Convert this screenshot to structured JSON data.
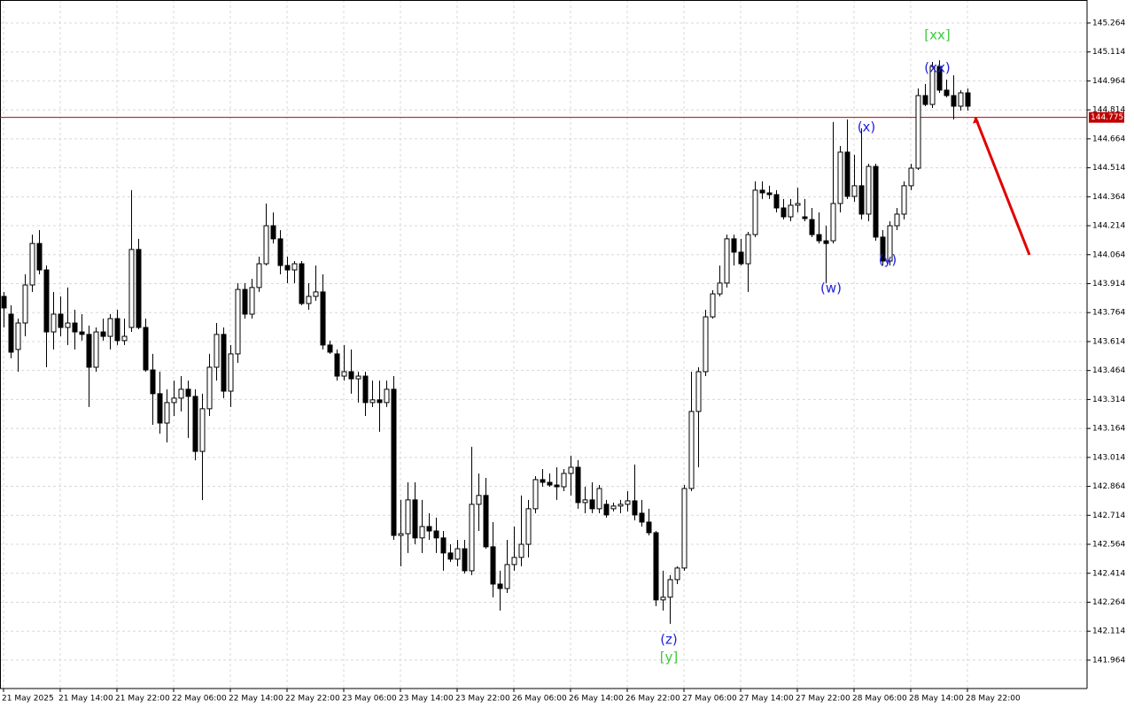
{
  "chart_data": {
    "type": "candlestick",
    "ylim": [
      141.817,
      145.383
    ],
    "yticks": [
      145.264,
      145.114,
      144.964,
      144.814,
      144.664,
      144.514,
      144.364,
      144.214,
      144.064,
      143.914,
      143.764,
      143.614,
      143.464,
      143.314,
      143.164,
      143.014,
      142.864,
      142.714,
      142.564,
      142.414,
      142.264,
      142.114,
      141.964
    ],
    "grid": true,
    "up_color": "#ffffff",
    "down_color": "#000000",
    "current_price": {
      "value": 144.775,
      "color": "#c00000"
    },
    "forecast": {
      "values": [
        144.775,
        144.063
      ],
      "color": "#e00000"
    },
    "annotations": [
      {
        "text": "[xx]",
        "color": "#3cc83c"
      },
      {
        "text": "(xx)",
        "color": "#2222dd"
      },
      {
        "text": "(x)",
        "color": "#2222dd"
      },
      {
        "text": "(w)",
        "color": "#2222dd"
      },
      {
        "text": "(y)",
        "color": "#2222dd"
      },
      {
        "text": "(z)",
        "color": "#2222dd"
      },
      {
        "text": "[y]",
        "color": "#3cc83c"
      }
    ],
    "x": [
      "21 May 2025",
      null,
      null,
      null,
      null,
      null,
      null,
      null,
      "21 May 14:00",
      null,
      null,
      null,
      null,
      null,
      null,
      null,
      "21 May 22:00",
      null,
      null,
      null,
      null,
      null,
      null,
      null,
      "22 May 06:00",
      null,
      null,
      null,
      null,
      null,
      null,
      null,
      "22 May 14:00",
      null,
      null,
      null,
      null,
      null,
      null,
      null,
      "22 May 22:00",
      null,
      null,
      null,
      null,
      null,
      null,
      null,
      "23 May 06:00",
      null,
      null,
      null,
      null,
      null,
      null,
      null,
      "23 May 14:00",
      null,
      null,
      null,
      null,
      null,
      null,
      null,
      "23 May 22:00",
      null,
      null,
      null,
      null,
      null,
      null,
      null,
      "26 May 06:00",
      null,
      null,
      null,
      null,
      null,
      null,
      null,
      "26 May 14:00",
      null,
      null,
      null,
      null,
      null,
      null,
      null,
      "26 May 22:00",
      null,
      null,
      null,
      null,
      null,
      null,
      null,
      "27 May 06:00",
      null,
      null,
      null,
      null,
      null,
      null,
      null,
      "27 May 14:00",
      null,
      null,
      null,
      null,
      null,
      null,
      null,
      "27 May 22:00",
      null,
      null,
      null,
      null,
      null,
      null,
      null,
      "28 May 06:00",
      null,
      null,
      null,
      null,
      null,
      null,
      null,
      "28 May 14:00",
      null,
      null,
      null,
      null,
      null,
      null,
      null,
      "28 May 22:00"
    ],
    "candles": [
      [
        143.848,
        143.871,
        143.687,
        143.788
      ],
      [
        143.756,
        143.802,
        143.527,
        143.559
      ],
      [
        143.573,
        143.733,
        143.458,
        143.71
      ],
      [
        143.71,
        143.962,
        143.641,
        143.907
      ],
      [
        143.907,
        144.168,
        143.871,
        144.122
      ],
      [
        144.122,
        144.191,
        143.962,
        143.985
      ],
      [
        143.985,
        144.008,
        143.481,
        143.664
      ],
      [
        143.664,
        143.871,
        143.573,
        143.756
      ],
      [
        143.756,
        143.848,
        143.641,
        143.687
      ],
      [
        143.687,
        143.894,
        143.596,
        143.71
      ],
      [
        143.71,
        143.779,
        143.573,
        143.664
      ],
      [
        143.664,
        143.756,
        143.619,
        143.651
      ],
      [
        143.651,
        143.697,
        143.275,
        143.481
      ],
      [
        143.481,
        143.687,
        143.458,
        143.664
      ],
      [
        143.664,
        143.733,
        143.619,
        143.641
      ],
      [
        143.641,
        143.756,
        143.573,
        143.733
      ],
      [
        143.733,
        143.779,
        143.596,
        143.619
      ],
      [
        143.619,
        143.733,
        143.596,
        143.641
      ],
      [
        143.687,
        144.398,
        143.664,
        144.091
      ],
      [
        144.091,
        144.146,
        143.678,
        143.687
      ],
      [
        143.687,
        143.733,
        143.458,
        143.467
      ],
      [
        143.467,
        143.55,
        143.183,
        143.344
      ],
      [
        143.344,
        143.458,
        143.137,
        143.192
      ],
      [
        143.192,
        143.367,
        143.092,
        143.298
      ],
      [
        143.298,
        143.412,
        143.229,
        143.321
      ],
      [
        143.321,
        143.435,
        143.252,
        143.367
      ],
      [
        143.367,
        143.412,
        143.115,
        143.33
      ],
      [
        143.33,
        143.367,
        142.999,
        143.045
      ],
      [
        143.045,
        143.344,
        142.793,
        143.266
      ],
      [
        143.266,
        143.55,
        143.229,
        143.481
      ],
      [
        143.481,
        143.71,
        143.412,
        143.651
      ],
      [
        143.651,
        143.687,
        143.321,
        143.357
      ],
      [
        143.357,
        143.596,
        143.275,
        143.55
      ],
      [
        143.55,
        143.917,
        143.504,
        143.884
      ],
      [
        143.884,
        143.917,
        143.733,
        143.756
      ],
      [
        143.756,
        143.939,
        143.733,
        143.894
      ],
      [
        143.894,
        144.054,
        143.871,
        144.017
      ],
      [
        144.017,
        144.329,
        144.008,
        144.214
      ],
      [
        144.214,
        144.283,
        144.122,
        144.146
      ],
      [
        144.146,
        144.191,
        143.962,
        144.008
      ],
      [
        144.008,
        144.054,
        143.917,
        143.985
      ],
      [
        143.985,
        144.031,
        143.917,
        144.017
      ],
      [
        144.017,
        144.031,
        143.802,
        143.811
      ],
      [
        143.811,
        143.917,
        143.779,
        143.848
      ],
      [
        143.848,
        144.008,
        143.825,
        143.871
      ],
      [
        143.871,
        143.962,
        143.573,
        143.596
      ],
      [
        143.596,
        143.619,
        143.55,
        143.559
      ],
      [
        143.55,
        143.573,
        143.412,
        143.435
      ],
      [
        143.435,
        143.596,
        143.412,
        143.458
      ],
      [
        143.458,
        143.573,
        143.344,
        143.421
      ],
      [
        143.421,
        143.458,
        143.298,
        143.435
      ],
      [
        143.435,
        143.458,
        143.229,
        143.298
      ],
      [
        143.298,
        143.412,
        143.275,
        143.312
      ],
      [
        143.312,
        143.412,
        143.147,
        143.298
      ],
      [
        143.298,
        143.412,
        143.275,
        143.367
      ],
      [
        143.367,
        143.435,
        142.587,
        142.61
      ],
      [
        142.61,
        142.794,
        142.45,
        142.619
      ],
      [
        142.619,
        142.885,
        142.519,
        142.794
      ],
      [
        142.794,
        142.885,
        142.564,
        142.597
      ],
      [
        142.597,
        142.794,
        142.519,
        142.656
      ],
      [
        142.656,
        142.725,
        142.587,
        142.633
      ],
      [
        142.633,
        142.702,
        142.519,
        142.597
      ],
      [
        142.597,
        142.633,
        142.427,
        142.519
      ],
      [
        142.519,
        142.564,
        142.473,
        142.487
      ],
      [
        142.487,
        142.587,
        142.45,
        142.541
      ],
      [
        142.541,
        142.587,
        142.413,
        142.427
      ],
      [
        142.427,
        143.069,
        142.404,
        142.771
      ],
      [
        142.771,
        142.931,
        142.633,
        142.817
      ],
      [
        142.817,
        142.908,
        142.541,
        142.551
      ],
      [
        142.551,
        142.679,
        142.289,
        142.358
      ],
      [
        142.358,
        142.427,
        142.221,
        142.335
      ],
      [
        142.335,
        142.587,
        142.312,
        142.459
      ],
      [
        142.459,
        142.656,
        142.427,
        142.496
      ],
      [
        142.496,
        142.817,
        142.45,
        142.564
      ],
      [
        142.564,
        142.794,
        142.496,
        142.748
      ],
      [
        142.748,
        142.917,
        142.725,
        142.899
      ],
      [
        142.899,
        142.954,
        142.862,
        142.885
      ],
      [
        142.885,
        142.931,
        142.862,
        142.871
      ],
      [
        142.871,
        142.963,
        142.794,
        142.862
      ],
      [
        142.862,
        142.954,
        142.839,
        142.931
      ],
      [
        142.931,
        143.023,
        142.817,
        142.963
      ],
      [
        142.963,
        143.0,
        142.748,
        142.78
      ],
      [
        142.78,
        142.862,
        142.725,
        142.794
      ],
      [
        142.794,
        142.885,
        142.725,
        142.748
      ],
      [
        142.748,
        142.871,
        142.725,
        142.853
      ],
      [
        142.771,
        142.794,
        142.702,
        142.716
      ],
      [
        142.748,
        142.78,
        142.734,
        142.762
      ],
      [
        142.762,
        142.794,
        142.725,
        142.771
      ],
      [
        142.771,
        142.839,
        142.734,
        142.789
      ],
      [
        142.789,
        142.977,
        142.688,
        142.716
      ],
      [
        142.725,
        142.794,
        142.656,
        142.679
      ],
      [
        142.679,
        142.748,
        142.61,
        142.624
      ],
      [
        142.624,
        142.633,
        142.244,
        142.276
      ],
      [
        142.276,
        142.427,
        142.221,
        142.29
      ],
      [
        142.29,
        142.404,
        142.152,
        142.381
      ],
      [
        142.381,
        142.45,
        142.358,
        142.441
      ],
      [
        142.441,
        142.871,
        142.427,
        142.853
      ],
      [
        142.853,
        143.458,
        142.839,
        143.252
      ],
      [
        143.252,
        143.481,
        142.963,
        143.458
      ],
      [
        143.458,
        143.779,
        143.435,
        143.742
      ],
      [
        143.742,
        143.88,
        143.733,
        143.861
      ],
      [
        143.861,
        144.008,
        143.848,
        143.917
      ],
      [
        143.917,
        144.168,
        143.894,
        144.146
      ],
      [
        144.146,
        144.168,
        144.008,
        144.077
      ],
      [
        144.077,
        144.146,
        144.008,
        144.017
      ],
      [
        144.017,
        144.182,
        143.871,
        144.168
      ],
      [
        144.168,
        144.444,
        144.155,
        144.398
      ],
      [
        144.398,
        144.444,
        144.352,
        144.384
      ],
      [
        144.384,
        144.421,
        144.352,
        144.375
      ],
      [
        144.375,
        144.398,
        144.283,
        144.306
      ],
      [
        144.306,
        144.352,
        144.246,
        144.26
      ],
      [
        144.26,
        144.352,
        144.237,
        144.32
      ],
      [
        144.32,
        144.411,
        144.283,
        144.329
      ],
      [
        144.26,
        144.352,
        144.237,
        144.251
      ],
      [
        144.246,
        144.306,
        144.155,
        144.168
      ],
      [
        144.168,
        144.283,
        144.122,
        144.136
      ],
      [
        144.136,
        144.214,
        143.917,
        144.122
      ],
      [
        144.136,
        144.751,
        144.122,
        144.329
      ],
      [
        144.329,
        144.627,
        144.283,
        144.595
      ],
      [
        144.595,
        144.764,
        144.352,
        144.366
      ],
      [
        144.366,
        144.581,
        144.338,
        144.421
      ],
      [
        144.421,
        144.718,
        144.246,
        144.274
      ],
      [
        144.274,
        144.535,
        144.237,
        144.521
      ],
      [
        144.521,
        144.535,
        144.136,
        144.155
      ],
      [
        144.155,
        144.191,
        144.008,
        144.031
      ],
      [
        144.031,
        144.237,
        144.008,
        144.214
      ],
      [
        144.214,
        144.306,
        144.191,
        144.274
      ],
      [
        144.274,
        144.444,
        144.246,
        144.421
      ],
      [
        144.421,
        144.535,
        144.398,
        144.512
      ],
      [
        144.512,
        144.925,
        144.503,
        144.888
      ],
      [
        144.888,
        144.948,
        144.833,
        144.842
      ],
      [
        144.842,
        145.062,
        144.824,
        145.039
      ],
      [
        145.039,
        145.071,
        144.902,
        144.916
      ],
      [
        144.916,
        144.971,
        144.879,
        144.888
      ],
      [
        144.888,
        144.993,
        144.764,
        144.833
      ],
      [
        144.833,
        144.916,
        144.81,
        144.902
      ],
      [
        144.902,
        144.925,
        144.81,
        144.833
      ]
    ]
  }
}
